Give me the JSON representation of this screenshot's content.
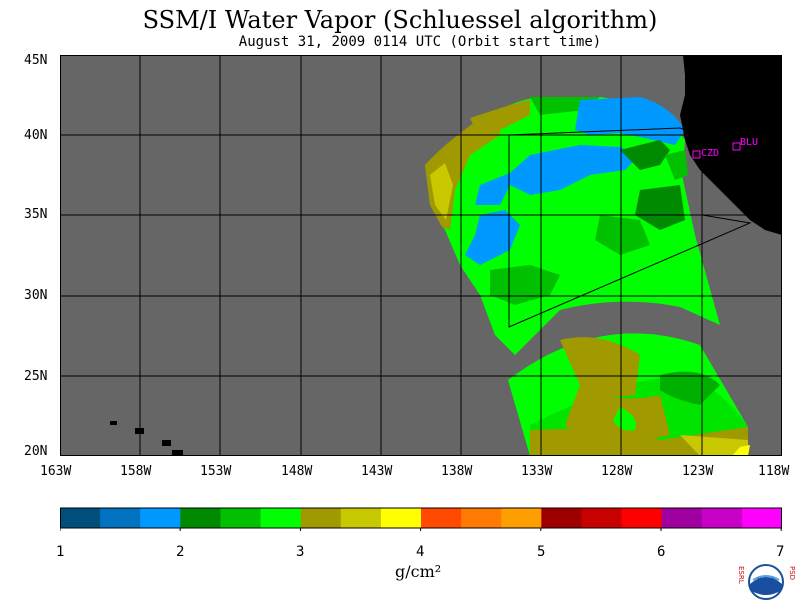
{
  "title": "SSM/I Water Vapor (Schluessel algorithm)",
  "subtitle": "August 31, 2009  0114 UTC  (Orbit start time)",
  "map": {
    "lat_labels": [
      "45N",
      "40N",
      "35N",
      "30N",
      "25N",
      "20N"
    ],
    "lon_labels": [
      "163W",
      "158W",
      "153W",
      "148W",
      "143W",
      "138W",
      "133W",
      "128W",
      "123W",
      "118W"
    ],
    "lat_range": [
      20,
      45
    ],
    "lon_range": [
      -163,
      -118
    ],
    "ocean_no_data_color": "#666666",
    "land_color": "#000000",
    "stations": [
      {
        "id": "CZD",
        "lat": 38.6,
        "lon": -123.2
      },
      {
        "id": "BLU",
        "lat": 39.3,
        "lon": -120.7
      }
    ],
    "station_color": "#ff00ff"
  },
  "colorbar": {
    "unit": "g/cm²",
    "tick_labels": [
      "1",
      "2",
      "3",
      "4",
      "5",
      "6",
      "7"
    ],
    "colors": [
      "#004f7a",
      "#0072c0",
      "#0099ff",
      "#008a00",
      "#00c000",
      "#00ff00",
      "#a09a00",
      "#c8c800",
      "#ffff00",
      "#ff4a00",
      "#ff7a00",
      "#ff9e00",
      "#9e0000",
      "#c80000",
      "#ff0000",
      "#a000a0",
      "#c800c8",
      "#ff00ff"
    ]
  },
  "logo": {
    "center": "NOAA",
    "left_letters": "ESRL",
    "right_letters": "PSD"
  }
}
